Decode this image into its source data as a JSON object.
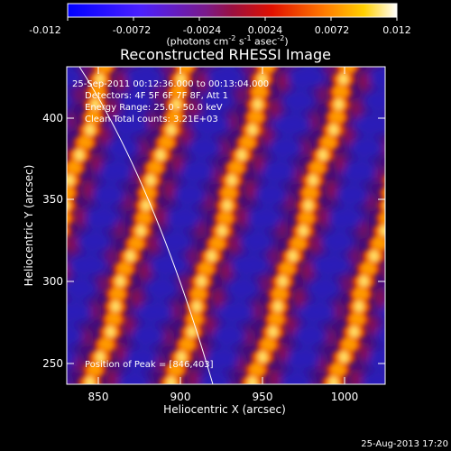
{
  "colorbar": {
    "ticks": [
      "-0.012",
      "-0.0072",
      "-0.0024",
      "0.0024",
      "0.0072",
      "0.012"
    ],
    "units_prefix": "(photons cm",
    "units_exp1": "-2",
    "units_mid1": " s",
    "units_exp2": "-1",
    "units_mid2": " asec",
    "units_exp3": "-2",
    "units_suffix": ")"
  },
  "plot": {
    "title": "Reconstructed RHESSI Image",
    "xlabel": "Heliocentric X (arcsec)",
    "ylabel": "Heliocentric Y (arcsec)",
    "xticks": [
      "850",
      "900",
      "950",
      "1000"
    ],
    "yticks": [
      "400",
      "350",
      "300",
      "250"
    ],
    "xlim": [
      832,
      1025
    ],
    "ylim": [
      235,
      432
    ]
  },
  "annotations": {
    "time_range": "25-Sep-2011 00:12:36.000 to 00:13:04.000",
    "detectors": "Detectors: 4F 5F 6F 7F 8F, Att 1",
    "energy": "Energy Range: 25.0 - 50.0 keV",
    "counts": "Clean     Total counts: 3.21E+03",
    "peak": "Position of Peak = [846,403]"
  },
  "footer": {
    "timestamp": "25-Aug-2013 17:20"
  },
  "colors": {
    "frame": "#ffffff",
    "limb_line": "#ffffff"
  }
}
